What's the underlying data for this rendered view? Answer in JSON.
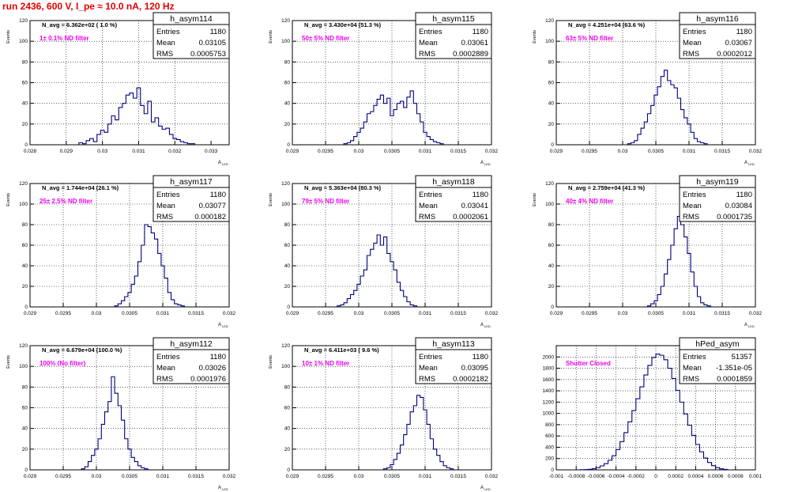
{
  "page_title": "run 2436,   600 V, I_pe ≈ 10.0 nA, 120 Hz",
  "colors": {
    "hist": "#000080",
    "annotation": "#ee00ee",
    "title_red": "#e00000"
  },
  "chart_data": [
    {
      "type": "histogram",
      "name": "h_asym114",
      "nav": "N_avg = 6.362e+02 ( 1.0 %)",
      "filter": "1± 0.1% ND filter",
      "stats": {
        "entries": "1180",
        "mean": "0.03105",
        "rms": "0.0005753"
      },
      "ylabel": "Events",
      "xlabel": "A",
      "xlim": [
        0.028,
        0.0335
      ],
      "ylim": [
        0,
        120
      ],
      "grid": true,
      "xticks": [
        "0.028",
        "0.029",
        "0.03",
        "0.031",
        "0.032",
        "0.033"
      ],
      "xtick_vals": [
        0.028,
        0.029,
        0.03,
        0.031,
        0.032,
        0.033
      ],
      "yticks": [
        "0",
        "20",
        "40",
        "60",
        "80",
        "100",
        "120"
      ],
      "ytick_vals": [
        0,
        20,
        40,
        60,
        80,
        100,
        120
      ],
      "x": [
        0.0294,
        0.0295,
        0.0296,
        0.0297,
        0.0298,
        0.0299,
        0.03,
        0.0301,
        0.0302,
        0.0303,
        0.0304,
        0.0305,
        0.0306,
        0.0307,
        0.0308,
        0.0309,
        0.031,
        0.0311,
        0.0312,
        0.0313,
        0.0314,
        0.0315,
        0.0316,
        0.0317,
        0.0318,
        0.0319,
        0.032,
        0.0321,
        0.0322,
        0.0323,
        0.0324,
        0.0325
      ],
      "values": [
        2,
        1,
        4,
        6,
        3,
        10,
        14,
        12,
        20,
        28,
        24,
        36,
        40,
        48,
        50,
        45,
        55,
        38,
        30,
        42,
        22,
        26,
        18,
        15,
        16,
        10,
        6,
        5,
        3,
        2,
        1,
        1
      ]
    },
    {
      "type": "histogram",
      "name": "h_asym115",
      "nav": "N_avg = 3.430e+04 (51.3 %)",
      "filter": "50± 5% ND filter",
      "stats": {
        "entries": "1180",
        "mean": "0.03061",
        "rms": "0.0002889"
      },
      "ylabel": "Events",
      "xlabel": "A",
      "xlim": [
        0.029,
        0.032
      ],
      "ylim": [
        0,
        120
      ],
      "grid": true,
      "xticks": [
        "0.029",
        "0.0295",
        "0.03",
        "0.0305",
        "0.031",
        "0.0315",
        "0.032"
      ],
      "xtick_vals": [
        0.029,
        0.0295,
        0.03,
        0.0305,
        0.031,
        0.0315,
        0.032
      ],
      "yticks": [
        "0",
        "20",
        "40",
        "60",
        "80",
        "100",
        "120"
      ],
      "ytick_vals": [
        0,
        20,
        40,
        60,
        80,
        100,
        120
      ],
      "x": [
        0.0298,
        0.02985,
        0.0299,
        0.02995,
        0.03,
        0.03005,
        0.0301,
        0.03015,
        0.0302,
        0.03025,
        0.0303,
        0.03035,
        0.0304,
        0.03045,
        0.0305,
        0.03055,
        0.0306,
        0.03065,
        0.0307,
        0.03075,
        0.0308,
        0.03085,
        0.0309,
        0.03095,
        0.031,
        0.03105,
        0.0311,
        0.03115,
        0.0312,
        0.03125
      ],
      "values": [
        1,
        2,
        4,
        8,
        12,
        16,
        22,
        30,
        32,
        38,
        44,
        48,
        40,
        45,
        28,
        34,
        40,
        42,
        36,
        46,
        52,
        40,
        30,
        22,
        12,
        8,
        5,
        3,
        2,
        1
      ]
    },
    {
      "type": "histogram",
      "name": "h_asym116",
      "nav": "N_avg = 4.251e+04 (63.6 %)",
      "filter": "63± 5% ND filter",
      "stats": {
        "entries": "1180",
        "mean": "0.03067",
        "rms": "0.0002012"
      },
      "ylabel": "Events",
      "xlabel": "A",
      "xlim": [
        0.029,
        0.032
      ],
      "ylim": [
        0,
        120
      ],
      "grid": true,
      "xticks": [
        "0.029",
        "0.0295",
        "0.03",
        "0.0305",
        "0.031",
        "0.0315",
        "0.032"
      ],
      "xtick_vals": [
        0.029,
        0.0295,
        0.03,
        0.0305,
        0.031,
        0.0315,
        0.032
      ],
      "yticks": [
        "0",
        "20",
        "40",
        "60",
        "80",
        "100",
        "120"
      ],
      "ytick_vals": [
        0,
        20,
        40,
        60,
        80,
        100,
        120
      ],
      "x": [
        0.0301,
        0.03015,
        0.0302,
        0.03025,
        0.0303,
        0.03035,
        0.0304,
        0.03045,
        0.0305,
        0.03055,
        0.0306,
        0.03065,
        0.0307,
        0.03075,
        0.0308,
        0.03085,
        0.0309,
        0.03095,
        0.031,
        0.03105,
        0.0311,
        0.03115,
        0.0312,
        0.03125
      ],
      "values": [
        1,
        2,
        4,
        10,
        16,
        22,
        30,
        38,
        48,
        56,
        66,
        72,
        62,
        58,
        55,
        45,
        34,
        26,
        20,
        12,
        6,
        3,
        2,
        1
      ]
    },
    {
      "type": "histogram",
      "name": "h_asym117",
      "nav": "N_avg = 1.744e+04 (26.1 %)",
      "filter": "25± 2.5% ND filter",
      "stats": {
        "entries": "1180",
        "mean": "0.03077",
        "rms": "0.000182"
      },
      "ylabel": "Events",
      "xlabel": "A",
      "xlim": [
        0.029,
        0.032
      ],
      "ylim": [
        0,
        120
      ],
      "grid": true,
      "xticks": [
        "0.029",
        "0.0295",
        "0.03",
        "0.0305",
        "0.031",
        "0.0315",
        "0.032"
      ],
      "xtick_vals": [
        0.029,
        0.0295,
        0.03,
        0.0305,
        0.031,
        0.0315,
        0.032
      ],
      "yticks": [
        "0",
        "20",
        "40",
        "60",
        "80",
        "100",
        "120"
      ],
      "ytick_vals": [
        0,
        20,
        40,
        60,
        80,
        100,
        120
      ],
      "x": [
        0.0303,
        0.03035,
        0.0304,
        0.03045,
        0.0305,
        0.03055,
        0.0306,
        0.03065,
        0.0307,
        0.03075,
        0.0308,
        0.03085,
        0.0309,
        0.03095,
        0.031,
        0.03105,
        0.0311,
        0.03115,
        0.0312,
        0.03125,
        0.0313
      ],
      "values": [
        1,
        3,
        6,
        10,
        14,
        22,
        30,
        44,
        60,
        80,
        78,
        72,
        66,
        52,
        40,
        28,
        14,
        7,
        3,
        2,
        1
      ]
    },
    {
      "type": "histogram",
      "name": "h_asym118",
      "nav": "N_avg = 5.363e+04 (80.3 %)",
      "filter": "79± 5% ND filter",
      "stats": {
        "entries": "1180",
        "mean": "0.03041",
        "rms": "0.0002061"
      },
      "ylabel": "Events",
      "xlabel": "A",
      "xlim": [
        0.029,
        0.032
      ],
      "ylim": [
        0,
        120
      ],
      "grid": true,
      "xticks": [
        "0.029",
        "0.0295",
        "0.03",
        "0.0305",
        "0.031",
        "0.0315",
        "0.032"
      ],
      "xtick_vals": [
        0.029,
        0.0295,
        0.03,
        0.0305,
        0.031,
        0.0315,
        0.032
      ],
      "yticks": [
        "0",
        "20",
        "40",
        "60",
        "80",
        "100",
        "120"
      ],
      "ytick_vals": [
        0,
        20,
        40,
        60,
        80,
        100,
        120
      ],
      "x": [
        0.0297,
        0.02975,
        0.0298,
        0.02985,
        0.0299,
        0.02995,
        0.03,
        0.03005,
        0.0301,
        0.03015,
        0.0302,
        0.03025,
        0.0303,
        0.03035,
        0.0304,
        0.03045,
        0.0305,
        0.03055,
        0.0306,
        0.03065,
        0.0307,
        0.03075,
        0.0308,
        0.03085
      ],
      "values": [
        1,
        2,
        4,
        8,
        12,
        16,
        22,
        30,
        36,
        50,
        56,
        62,
        70,
        60,
        68,
        52,
        44,
        36,
        24,
        16,
        10,
        5,
        2,
        1
      ]
    },
    {
      "type": "histogram",
      "name": "h_asym119",
      "nav": "N_avg = 2.759e+04 (41.3 %)",
      "filter": "40± 4% ND filter",
      "stats": {
        "entries": "1180",
        "mean": "0.03084",
        "rms": "0.0001735"
      },
      "ylabel": "Events",
      "xlabel": "A",
      "xlim": [
        0.029,
        0.032
      ],
      "ylim": [
        0,
        120
      ],
      "grid": true,
      "xticks": [
        "0.029",
        "0.0295",
        "0.03",
        "0.0305",
        "0.031",
        "0.0315",
        "0.032"
      ],
      "xtick_vals": [
        0.029,
        0.0295,
        0.03,
        0.0305,
        0.031,
        0.0315,
        0.032
      ],
      "yticks": [
        "0",
        "20",
        "40",
        "60",
        "80",
        "100",
        "120"
      ],
      "ytick_vals": [
        0,
        20,
        40,
        60,
        80,
        100,
        120
      ],
      "x": [
        0.0304,
        0.03045,
        0.0305,
        0.03055,
        0.0306,
        0.03065,
        0.0307,
        0.03075,
        0.0308,
        0.03085,
        0.0309,
        0.03095,
        0.031,
        0.03105,
        0.0311,
        0.03115,
        0.0312,
        0.03125,
        0.0313
      ],
      "values": [
        1,
        3,
        6,
        12,
        20,
        32,
        46,
        60,
        76,
        88,
        80,
        68,
        52,
        34,
        20,
        10,
        4,
        2,
        1
      ]
    },
    {
      "type": "histogram",
      "name": "h_asym112",
      "nav": "N_avg = 6.679e+04 (100.0 %)",
      "filter": "100% (No filter)",
      "stats": {
        "entries": "1180",
        "mean": "0.03026",
        "rms": "0.0001976"
      },
      "ylabel": "Events",
      "xlabel": "A",
      "xlim": [
        0.029,
        0.032
      ],
      "ylim": [
        0,
        120
      ],
      "grid": true,
      "xticks": [
        "0.029",
        "0.0295",
        "0.03",
        "0.0305",
        "0.031",
        "0.0315",
        "0.032"
      ],
      "xtick_vals": [
        0.029,
        0.0295,
        0.03,
        0.0305,
        0.031,
        0.0315,
        0.032
      ],
      "yticks": [
        "0",
        "20",
        "40",
        "60",
        "80",
        "100",
        "120"
      ],
      "ytick_vals": [
        0,
        20,
        40,
        60,
        80,
        100,
        120
      ],
      "x": [
        0.0298,
        0.02985,
        0.0299,
        0.02995,
        0.03,
        0.03005,
        0.0301,
        0.03015,
        0.0302,
        0.03025,
        0.0303,
        0.03035,
        0.0304,
        0.03045,
        0.0305,
        0.03055,
        0.0306,
        0.03065,
        0.0307,
        0.03075
      ],
      "values": [
        1,
        3,
        8,
        14,
        20,
        30,
        44,
        56,
        66,
        90,
        74,
        62,
        48,
        30,
        20,
        12,
        8,
        4,
        2,
        1
      ]
    },
    {
      "type": "histogram",
      "name": "h_asym113",
      "nav": "N_avg = 6.411e+03 ( 9.6 %)",
      "filter": "10± 1% ND filter",
      "stats": {
        "entries": "1180",
        "mean": "0.03095",
        "rms": "0.0002182"
      },
      "ylabel": "Events",
      "xlabel": "A",
      "xlim": [
        0.029,
        0.032
      ],
      "ylim": [
        0,
        120
      ],
      "grid": true,
      "xticks": [
        "0.029",
        "0.0295",
        "0.03",
        "0.0305",
        "0.031",
        "0.0315",
        "0.032"
      ],
      "xtick_vals": [
        0.029,
        0.0295,
        0.03,
        0.0305,
        0.031,
        0.0315,
        0.032
      ],
      "yticks": [
        "0",
        "20",
        "40",
        "60",
        "80",
        "100",
        "120"
      ],
      "ytick_vals": [
        0,
        20,
        40,
        60,
        80,
        100,
        120
      ],
      "x": [
        0.0304,
        0.03045,
        0.0305,
        0.03055,
        0.0306,
        0.03065,
        0.0307,
        0.03075,
        0.0308,
        0.03085,
        0.0309,
        0.03095,
        0.031,
        0.03105,
        0.0311,
        0.03115,
        0.0312,
        0.03125,
        0.0313,
        0.03135,
        0.0314
      ],
      "values": [
        1,
        2,
        5,
        10,
        16,
        24,
        34,
        44,
        56,
        62,
        72,
        70,
        58,
        44,
        30,
        20,
        14,
        8,
        4,
        2,
        1
      ]
    },
    {
      "type": "histogram",
      "name": "hPed_asym",
      "nav": "",
      "filter": "Shutter Closed",
      "stats": {
        "entries": "51357",
        "mean": "-1.351e-05",
        "rms": "0.0001859"
      },
      "ylabel": "",
      "xlabel": "",
      "xlim": [
        -0.001,
        0.001
      ],
      "ylim": [
        0,
        2200
      ],
      "grid": true,
      "xticks": [
        "-0.001",
        "-0.0008",
        "-0.0006",
        "-0.0004",
        "-0.0002",
        "0",
        "0.0002",
        "0.0004",
        "0.0006",
        "0.0008",
        "0.001"
      ],
      "xtick_vals": [
        -0.001,
        -0.0008,
        -0.0006,
        -0.0004,
        -0.0002,
        0,
        0.0002,
        0.0004,
        0.0006,
        0.0008,
        0.001
      ],
      "yticks": [
        "0",
        "200",
        "400",
        "600",
        "800",
        "1000",
        "1200",
        "1400",
        "1600",
        "1800",
        "2000"
      ],
      "ytick_vals": [
        0,
        200,
        400,
        600,
        800,
        1000,
        1200,
        1400,
        1600,
        1800,
        2000
      ],
      "x": [
        -0.00074,
        -0.0007,
        -0.00066,
        -0.00062,
        -0.00058,
        -0.00054,
        -0.0005,
        -0.00046,
        -0.00042,
        -0.00038,
        -0.00034,
        -0.0003,
        -0.00026,
        -0.00022,
        -0.00018,
        -0.00014,
        -0.0001,
        -6e-05,
        -2e-05,
        2e-05,
        6e-05,
        0.0001,
        0.00014,
        0.00018,
        0.00022,
        0.00026,
        0.0003,
        0.00034,
        0.00038,
        0.00042,
        0.00046,
        0.0005,
        0.00054,
        0.00058,
        0.00062,
        0.00066,
        0.0007
      ],
      "values": [
        2,
        4,
        10,
        20,
        40,
        70,
        110,
        170,
        250,
        360,
        500,
        660,
        850,
        1050,
        1260,
        1470,
        1680,
        1850,
        1990,
        2050,
        2030,
        1950,
        1800,
        1620,
        1410,
        1200,
        990,
        790,
        610,
        450,
        320,
        210,
        130,
        75,
        40,
        18,
        8
      ]
    }
  ]
}
